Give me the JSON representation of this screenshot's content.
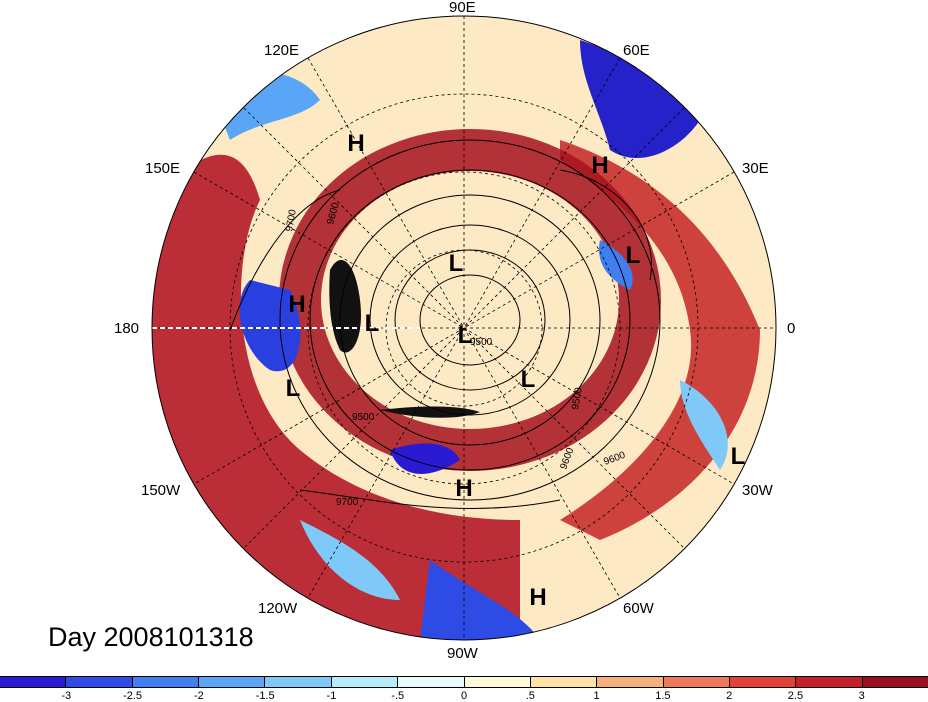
{
  "title": "Day 2008101318",
  "longitude_labels": [
    "90E",
    "60E",
    "30E",
    "0",
    "30W",
    "60W",
    "90W",
    "120W",
    "150W",
    "180",
    "150E",
    "120E"
  ],
  "contour_labels": [
    "9700",
    "9600",
    "9500",
    "9500",
    "9600",
    "9600",
    "9700",
    "9500"
  ],
  "pressure_centers": [
    "H",
    "H",
    "H",
    "H",
    "H",
    "L",
    "L",
    "L",
    "L",
    "L",
    "L"
  ],
  "colorbar": {
    "ticks": [
      "-3",
      "-2.5",
      "-2",
      "-1.5",
      "-1",
      "-.5",
      "0",
      ".5",
      "1",
      "1.5",
      "2",
      "2.5",
      "3"
    ],
    "colors": [
      "#2a1bd3",
      "#2e4be6",
      "#3f7ff0",
      "#5aa5f5",
      "#7fc9f8",
      "#b5ebfb",
      "#e6fbfc",
      "#fffbd9",
      "#fde4a6",
      "#f5b07c",
      "#ee7a5a",
      "#e04338",
      "#c2202b",
      "#9a0f1f"
    ]
  }
}
